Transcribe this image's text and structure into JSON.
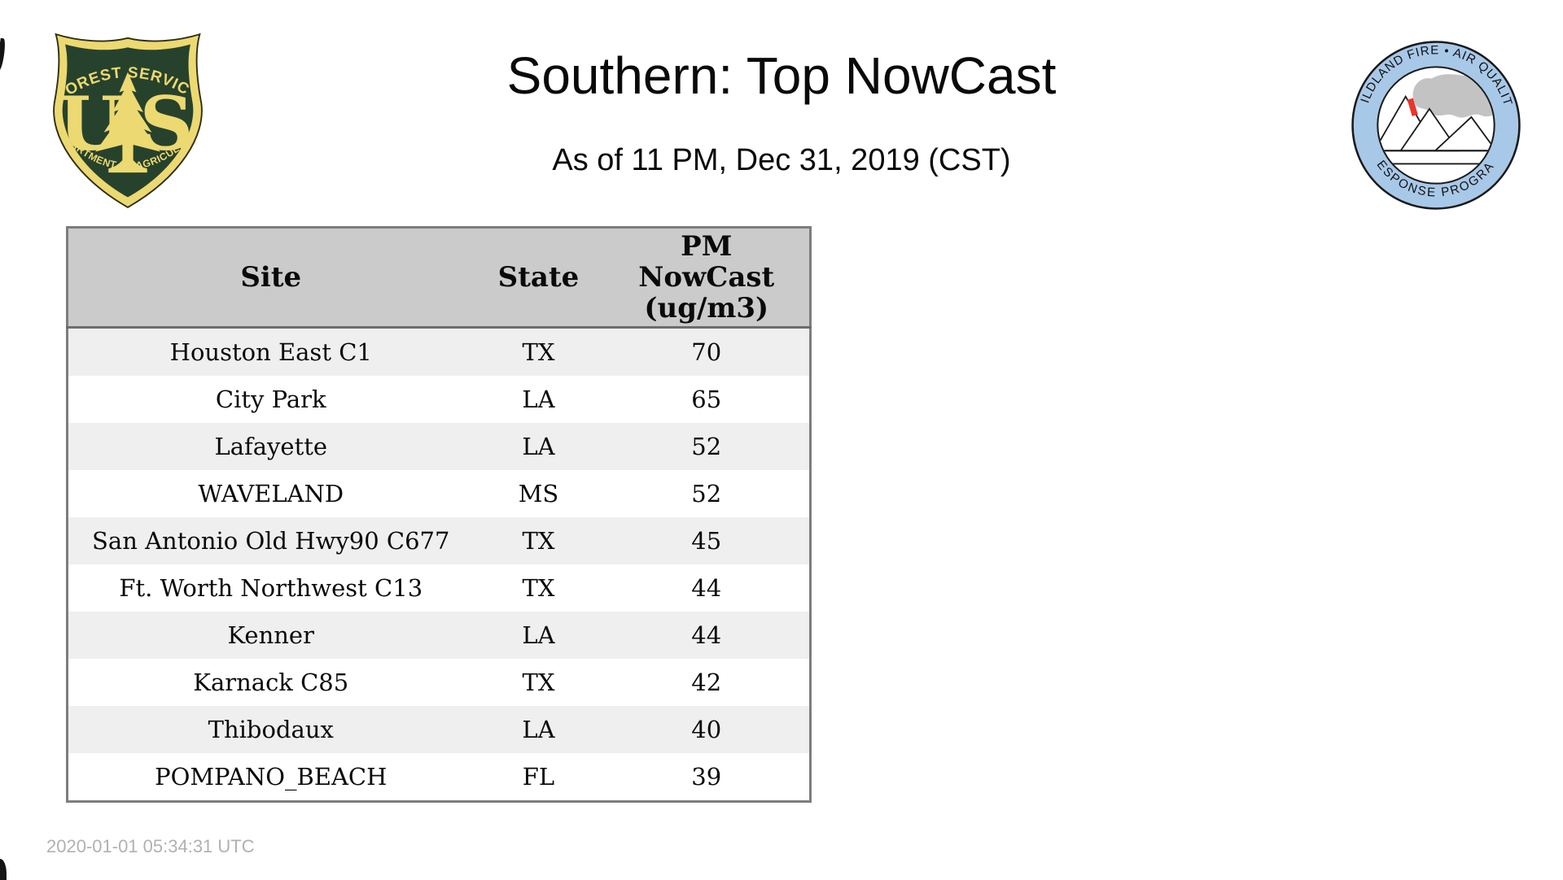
{
  "page": {
    "title": "Southern: Top NowCast",
    "subtitle": "As of 11 PM, Dec 31, 2019 (CST)",
    "timestamp": "2020-01-01 05:34:31 UTC"
  },
  "logos": {
    "forest_service": {
      "arc_top": "FOREST SERVICE",
      "letter_left": "U",
      "letter_right": "S",
      "arc_bottom": "DEPARTMENT OF AGRICULTURE",
      "color_green": "#27422c",
      "color_gold": "#ecd972"
    },
    "air_quality": {
      "arc_top": "WILDLAND FIRE • AIR QUALITY",
      "arc_bottom": "RESPONSE PROGRAM",
      "color_ring": "#a8c8e8",
      "color_smoke": "#c3c3c3",
      "color_fire": "#e8362d"
    }
  },
  "table": {
    "headers": {
      "site": "Site",
      "state": "State",
      "value_lines": [
        "PM",
        "NowCast",
        "(ug/m3)"
      ]
    },
    "rows": [
      {
        "site": "Houston East C1",
        "state": "TX",
        "value": 70
      },
      {
        "site": "City Park",
        "state": "LA",
        "value": 65
      },
      {
        "site": "Lafayette",
        "state": "LA",
        "value": 52
      },
      {
        "site": "WAVELAND",
        "state": "MS",
        "value": 52
      },
      {
        "site": "San Antonio Old Hwy90 C677",
        "state": "TX",
        "value": 45
      },
      {
        "site": "Ft. Worth Northwest C13",
        "state": "TX",
        "value": 44
      },
      {
        "site": "Kenner",
        "state": "LA",
        "value": 44
      },
      {
        "site": "Karnack C85",
        "state": "TX",
        "value": 42
      },
      {
        "site": "Thibodaux",
        "state": "LA",
        "value": 40
      },
      {
        "site": "POMPANO_BEACH",
        "state": "FL",
        "value": 39
      }
    ]
  },
  "chart_data": {
    "type": "table",
    "title": "Southern: Top NowCast",
    "subtitle": "As of 11 PM, Dec 31, 2019 (CST)",
    "columns": [
      "Site",
      "State",
      "PM NowCast (ug/m3)"
    ],
    "rows": [
      [
        "Houston East C1",
        "TX",
        70
      ],
      [
        "City Park",
        "LA",
        65
      ],
      [
        "Lafayette",
        "LA",
        52
      ],
      [
        "WAVELAND",
        "MS",
        52
      ],
      [
        "San Antonio Old Hwy90 C677",
        "TX",
        45
      ],
      [
        "Ft. Worth Northwest C13",
        "TX",
        44
      ],
      [
        "Kenner",
        "LA",
        44
      ],
      [
        "Karnack C85",
        "TX",
        42
      ],
      [
        "Thibodaux",
        "LA",
        40
      ],
      [
        "POMPANO_BEACH",
        "FL",
        39
      ]
    ],
    "footer_timestamp": "2020-01-01 05:34:31 UTC"
  }
}
